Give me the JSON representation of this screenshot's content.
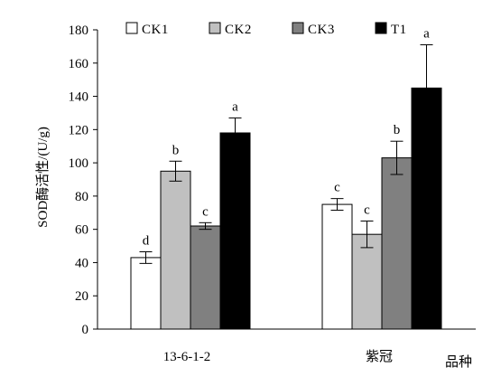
{
  "chart_data": {
    "type": "bar",
    "categories": [
      "13-6-1-2",
      "紫冠"
    ],
    "xlabel": "品种",
    "ylabel": "SOD酶活性/(U/g)",
    "ylim": [
      0,
      180
    ],
    "yticks": [
      0,
      20,
      40,
      60,
      80,
      100,
      120,
      140,
      160,
      180
    ],
    "grid": false,
    "legend_position": "top",
    "series": [
      {
        "name": "CK1",
        "color": "#ffffff",
        "values": [
          43,
          75
        ],
        "errors": [
          3.5,
          3.5
        ],
        "labels": [
          "d",
          "c"
        ]
      },
      {
        "name": "CK2",
        "color": "#c0c0c0",
        "values": [
          95,
          57
        ],
        "errors": [
          6,
          8
        ],
        "labels": [
          "b",
          "c"
        ]
      },
      {
        "name": "CK3",
        "color": "#808080",
        "values": [
          62,
          103
        ],
        "errors": [
          2,
          10
        ],
        "labels": [
          "c",
          "b"
        ]
      },
      {
        "name": "T1",
        "color": "#000000",
        "values": [
          118,
          145
        ],
        "errors": [
          9,
          26
        ],
        "labels": [
          "a",
          "a"
        ]
      }
    ]
  }
}
